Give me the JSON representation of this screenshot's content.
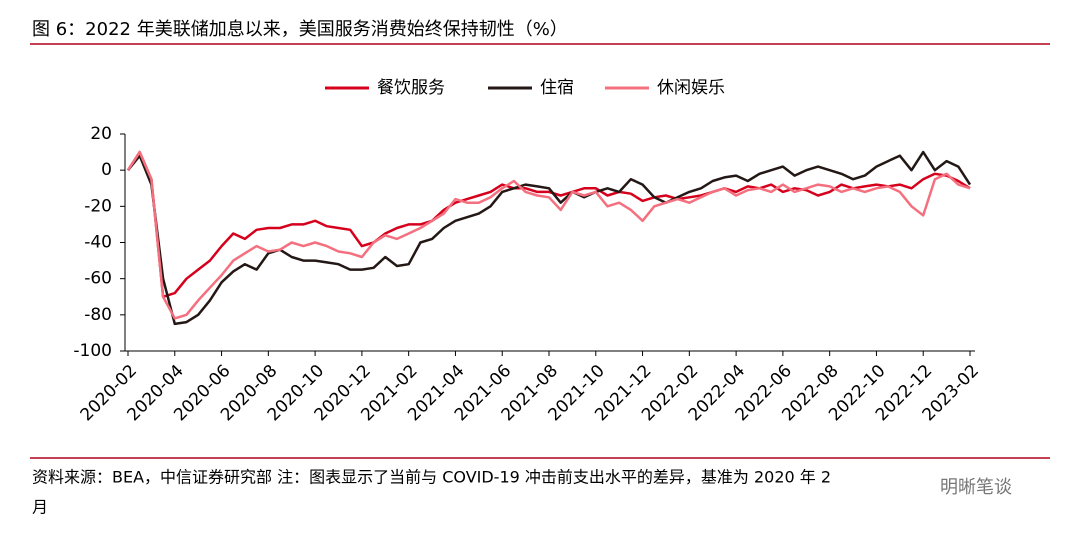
{
  "chart_data": {
    "type": "line",
    "title": "图 6：2022 年美联储加息以来，美国服务消费始终保持韧性（%）",
    "source": [
      "资料来源：BEA，中信证券研究部 注：图表显示了当前与 COVID-19 冲击前支出水平的差异，基准为 2020 年 2",
      "月"
    ],
    "watermark": "明晰笔谈",
    "categories": [
      "2020-02",
      null,
      null,
      null,
      "2020-04",
      null,
      null,
      null,
      "2020-06",
      null,
      null,
      null,
      "2020-08",
      null,
      null,
      null,
      "2020-10",
      null,
      null,
      null,
      "2020-12",
      null,
      null,
      null,
      "2021-02",
      null,
      null,
      null,
      "2021-04",
      null,
      null,
      null,
      "2021-06",
      null,
      null,
      null,
      "2021-08",
      null,
      null,
      null,
      "2021-10",
      null,
      null,
      null,
      "2021-12",
      null,
      null,
      null,
      "2022-02",
      null,
      null,
      null,
      "2022-04",
      null,
      null,
      null,
      "2022-06",
      null,
      null,
      null,
      "2022-08",
      null,
      null,
      null,
      "2022-10",
      null,
      null,
      null,
      "2022-12",
      null,
      null,
      null,
      "2023-02"
    ],
    "series": [
      {
        "name": "餐饮服务",
        "color": "#d6001c",
        "values": [
          0,
          10,
          -5,
          -70,
          -68,
          -60,
          -55,
          -50,
          -42,
          -35,
          -38,
          -33,
          -32,
          -32,
          -30,
          -30,
          -28,
          -31,
          -32,
          -33,
          -42,
          -40,
          -35,
          -32,
          -30,
          -30,
          -28,
          -22,
          -18,
          -16,
          -14,
          -12,
          -8,
          -10,
          -10,
          -12,
          -12,
          -14,
          -12,
          -10,
          -10,
          -14,
          -12,
          -13,
          -17,
          -15,
          -14,
          -16,
          -15,
          -14,
          -12,
          -10,
          -12,
          -9,
          -10,
          -8,
          -12,
          -10,
          -11,
          -14,
          -12,
          -8,
          -10,
          -9,
          -8,
          -9,
          -8,
          -10,
          -5,
          -2,
          -3,
          -6,
          -10
        ]
      },
      {
        "name": "住宿",
        "color": "#231815",
        "values": [
          0,
          8,
          -8,
          -60,
          -85,
          -84,
          -80,
          -72,
          -62,
          -56,
          -52,
          -55,
          -46,
          -44,
          -48,
          -50,
          -50,
          -51,
          -52,
          -55,
          -55,
          -54,
          -48,
          -53,
          -52,
          -40,
          -38,
          -32,
          -28,
          -26,
          -24,
          -20,
          -12,
          -10,
          -8,
          -9,
          -10,
          -18,
          -12,
          -15,
          -12,
          -10,
          -12,
          -5,
          -8,
          -15,
          -18,
          -15,
          -12,
          -10,
          -6,
          -4,
          -3,
          -6,
          -2,
          0,
          2,
          -3,
          0,
          2,
          0,
          -2,
          -5,
          -3,
          2,
          5,
          8,
          0,
          10,
          0,
          5,
          2,
          -8
        ]
      },
      {
        "name": "休闲娱乐",
        "color": "#f4707f",
        "values": [
          0,
          10,
          -5,
          -70,
          -82,
          -80,
          -72,
          -65,
          -58,
          -50,
          -46,
          -42,
          -45,
          -44,
          -40,
          -42,
          -40,
          -42,
          -45,
          -46,
          -48,
          -40,
          -36,
          -38,
          -35,
          -32,
          -28,
          -24,
          -16,
          -18,
          -18,
          -15,
          -10,
          -6,
          -12,
          -14,
          -15,
          -22,
          -12,
          -14,
          -12,
          -20,
          -18,
          -22,
          -28,
          -20,
          -18,
          -16,
          -18,
          -15,
          -12,
          -10,
          -14,
          -11,
          -10,
          -12,
          -8,
          -12,
          -10,
          -8,
          -9,
          -12,
          -10,
          -12,
          -10,
          -9,
          -12,
          -20,
          -25,
          -5,
          -2,
          -8,
          -10
        ]
      }
    ],
    "ylim": [
      -100,
      20
    ],
    "yticks": [
      -100,
      -80,
      -60,
      -40,
      -20,
      0,
      20
    ]
  }
}
